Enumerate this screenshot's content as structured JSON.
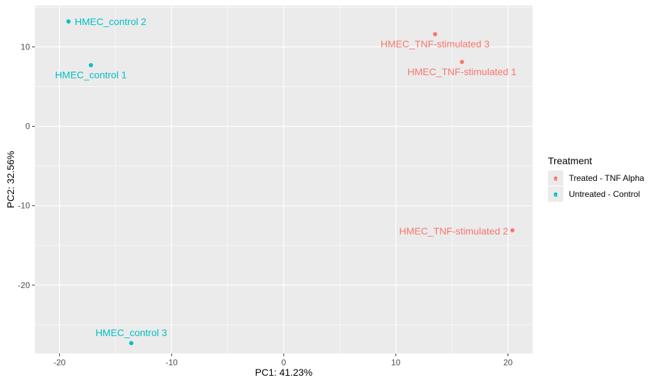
{
  "chart_data": {
    "type": "scatter",
    "title": "",
    "xlabel": "PC1: 41.23%",
    "ylabel": "PC2: 32.56%",
    "xlim": [
      -22.2,
      22.2
    ],
    "ylim": [
      -28.6,
      15.2
    ],
    "xticks": [
      -20,
      -10,
      0,
      10,
      20
    ],
    "yticks": [
      -20,
      -10,
      0,
      10
    ],
    "grid": true,
    "legend": {
      "title": "Treatment",
      "position": "right",
      "entries": [
        {
          "label": "Treated - TNF Alpha",
          "glyph": "a",
          "color": "#F8766D"
        },
        {
          "label": "Untreated - Control",
          "glyph": "a",
          "color": "#00BFC4"
        }
      ]
    },
    "series": [
      {
        "name": "Treated - TNF Alpha",
        "color": "#F8766D",
        "points": [
          {
            "label": "HMEC_TNF-stimulated 1",
            "x": 15.9,
            "y": 8.1,
            "label_side": "below"
          },
          {
            "label": "HMEC_TNF-stimulated 2",
            "x": 20.4,
            "y": -13.1,
            "label_side": "left"
          },
          {
            "label": "HMEC_TNF-stimulated 3",
            "x": 13.5,
            "y": 11.6,
            "label_side": "below"
          }
        ]
      },
      {
        "name": "Untreated - Control",
        "color": "#00BFC4",
        "points": [
          {
            "label": "HMEC_control 1",
            "x": -17.2,
            "y": 7.7,
            "label_side": "below"
          },
          {
            "label": "HMEC_control 2",
            "x": -19.2,
            "y": 13.2,
            "label_side": "right"
          },
          {
            "label": "HMEC_control 3",
            "x": -13.6,
            "y": -27.3,
            "label_side": "above"
          }
        ]
      }
    ]
  },
  "colors": {
    "panel_background": "#EBEBEB",
    "grid": "#FFFFFF",
    "treated": "#F8766D",
    "control": "#00BFC4"
  }
}
